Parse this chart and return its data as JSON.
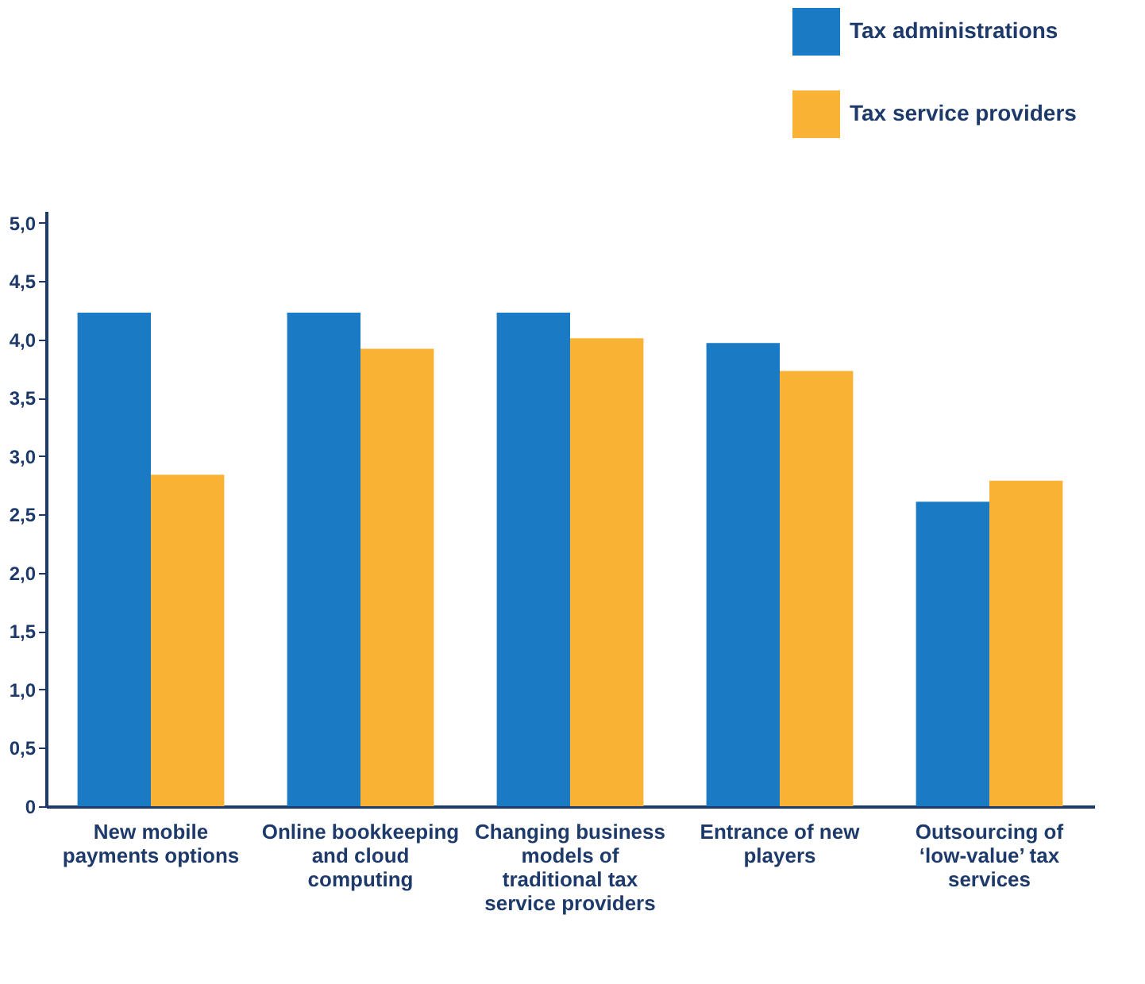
{
  "chart_data": {
    "type": "bar",
    "categories": [
      "New mobile payments options",
      "Online bookkeeping and cloud computing",
      "Changing business models of traditional tax service providers",
      "Entrance of new players",
      "Outsourcing of ‘low-value’ tax services"
    ],
    "series": [
      {
        "name": "Tax administrations",
        "color": "#1a7bc4",
        "values": [
          4.23,
          4.23,
          4.23,
          3.97,
          2.61
        ]
      },
      {
        "name": "Tax service providers",
        "color": "#f9b233",
        "values": [
          2.84,
          3.92,
          4.01,
          3.73,
          2.79
        ]
      }
    ],
    "ylim": [
      0,
      5.1
    ],
    "yticks": [
      0,
      {
        "value": 0.5,
        "label": "0,5"
      },
      {
        "value": 1,
        "label": "1,0"
      },
      {
        "value": 1.5,
        "label": "1,5"
      },
      {
        "value": 2,
        "label": "2,0"
      },
      {
        "value": 2.5,
        "label": "2,5"
      },
      {
        "value": 3,
        "label": "3,0"
      },
      {
        "value": 3.5,
        "label": "3,5"
      },
      {
        "value": 4,
        "label": "4,0"
      },
      {
        "value": 4.5,
        "label": "4,5"
      },
      {
        "value": 5,
        "label": "5,0"
      }
    ],
    "legend": "top right",
    "grid": false
  }
}
